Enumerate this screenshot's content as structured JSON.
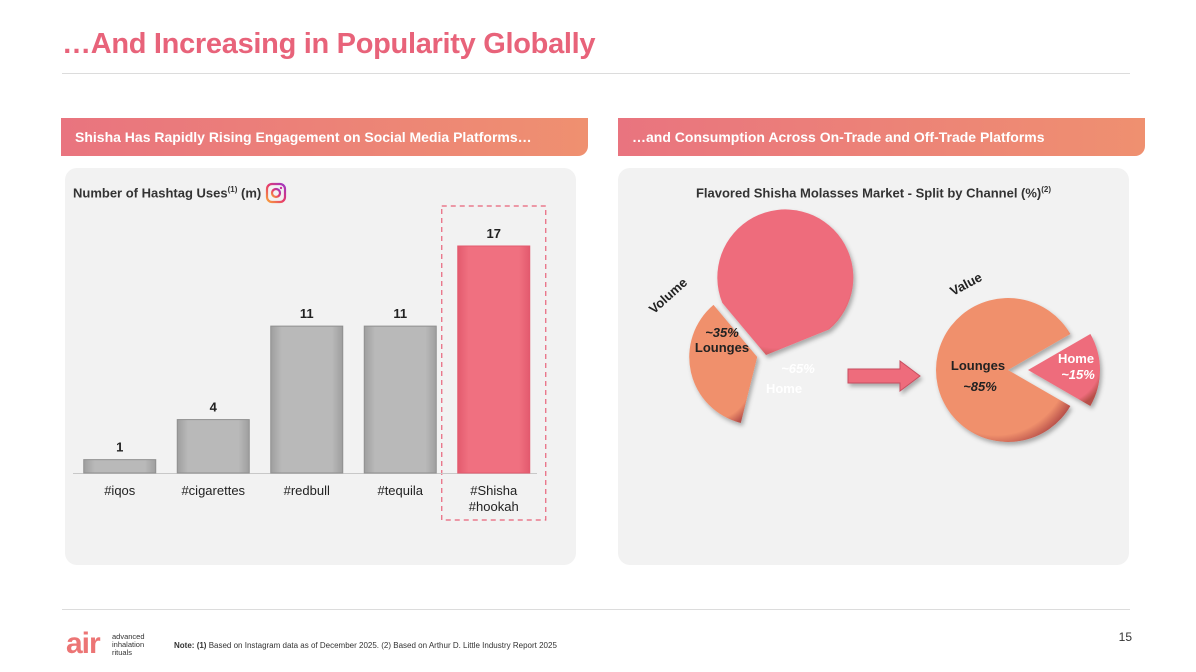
{
  "page": {
    "title": "…And Increasing in Popularity Globally",
    "page_number": "15",
    "footnote_label": "Note:",
    "footnote_1_marker": "(1)",
    "footnote_1_text": " Based on Instagram data as of December 2025.",
    "footnote_2_text": " (2) Based on Arthur D. Little Industry Report 2025"
  },
  "logo": {
    "mark": "air",
    "words": [
      "advanced",
      "inhalation",
      "rituals"
    ]
  },
  "left_section": {
    "band_label": "Shisha Has Rapidly Rising Engagement on Social Media Platforms…",
    "heading": "Number of Hashtag Uses",
    "heading_sup": "(1)",
    "heading_unit": " (m)",
    "icon": "instagram-icon"
  },
  "right_section": {
    "band_label": "…and Consumption Across On-Trade and Off-Trade Platforms",
    "heading": "Flavored Shisha Molasses Market - Split by Channel (%)",
    "heading_sup": "(2)"
  },
  "chart_data": [
    {
      "type": "bar",
      "categories": [
        "#iqos",
        "#cigarettes",
        "#redbull",
        "#tequila",
        "#Shisha\n#hookah"
      ],
      "values": [
        1,
        4,
        11,
        11,
        17
      ],
      "data_labels": [
        "1",
        "4",
        "11",
        "11",
        "17"
      ],
      "highlighted_index": 4,
      "colors": {
        "default": "#b9b9b9",
        "highlight": "#f07080",
        "highlight_border": "#e35a6e"
      },
      "ylim": [
        0,
        17
      ]
    },
    {
      "type": "pie",
      "title": "Volume",
      "slices": [
        {
          "name": "Lounges",
          "value": 35,
          "label": "~35%",
          "color": "#f0906c"
        },
        {
          "name": "Home",
          "value": 65,
          "label": "~65%",
          "color": "#ee6c7c"
        }
      ]
    },
    {
      "type": "pie",
      "title": "Value",
      "slices": [
        {
          "name": "Lounges",
          "value": 85,
          "label": "~85%",
          "color": "#f0906c"
        },
        {
          "name": "Home",
          "value": 15,
          "label": "~15%",
          "color": "#ee6c7c"
        }
      ]
    }
  ]
}
